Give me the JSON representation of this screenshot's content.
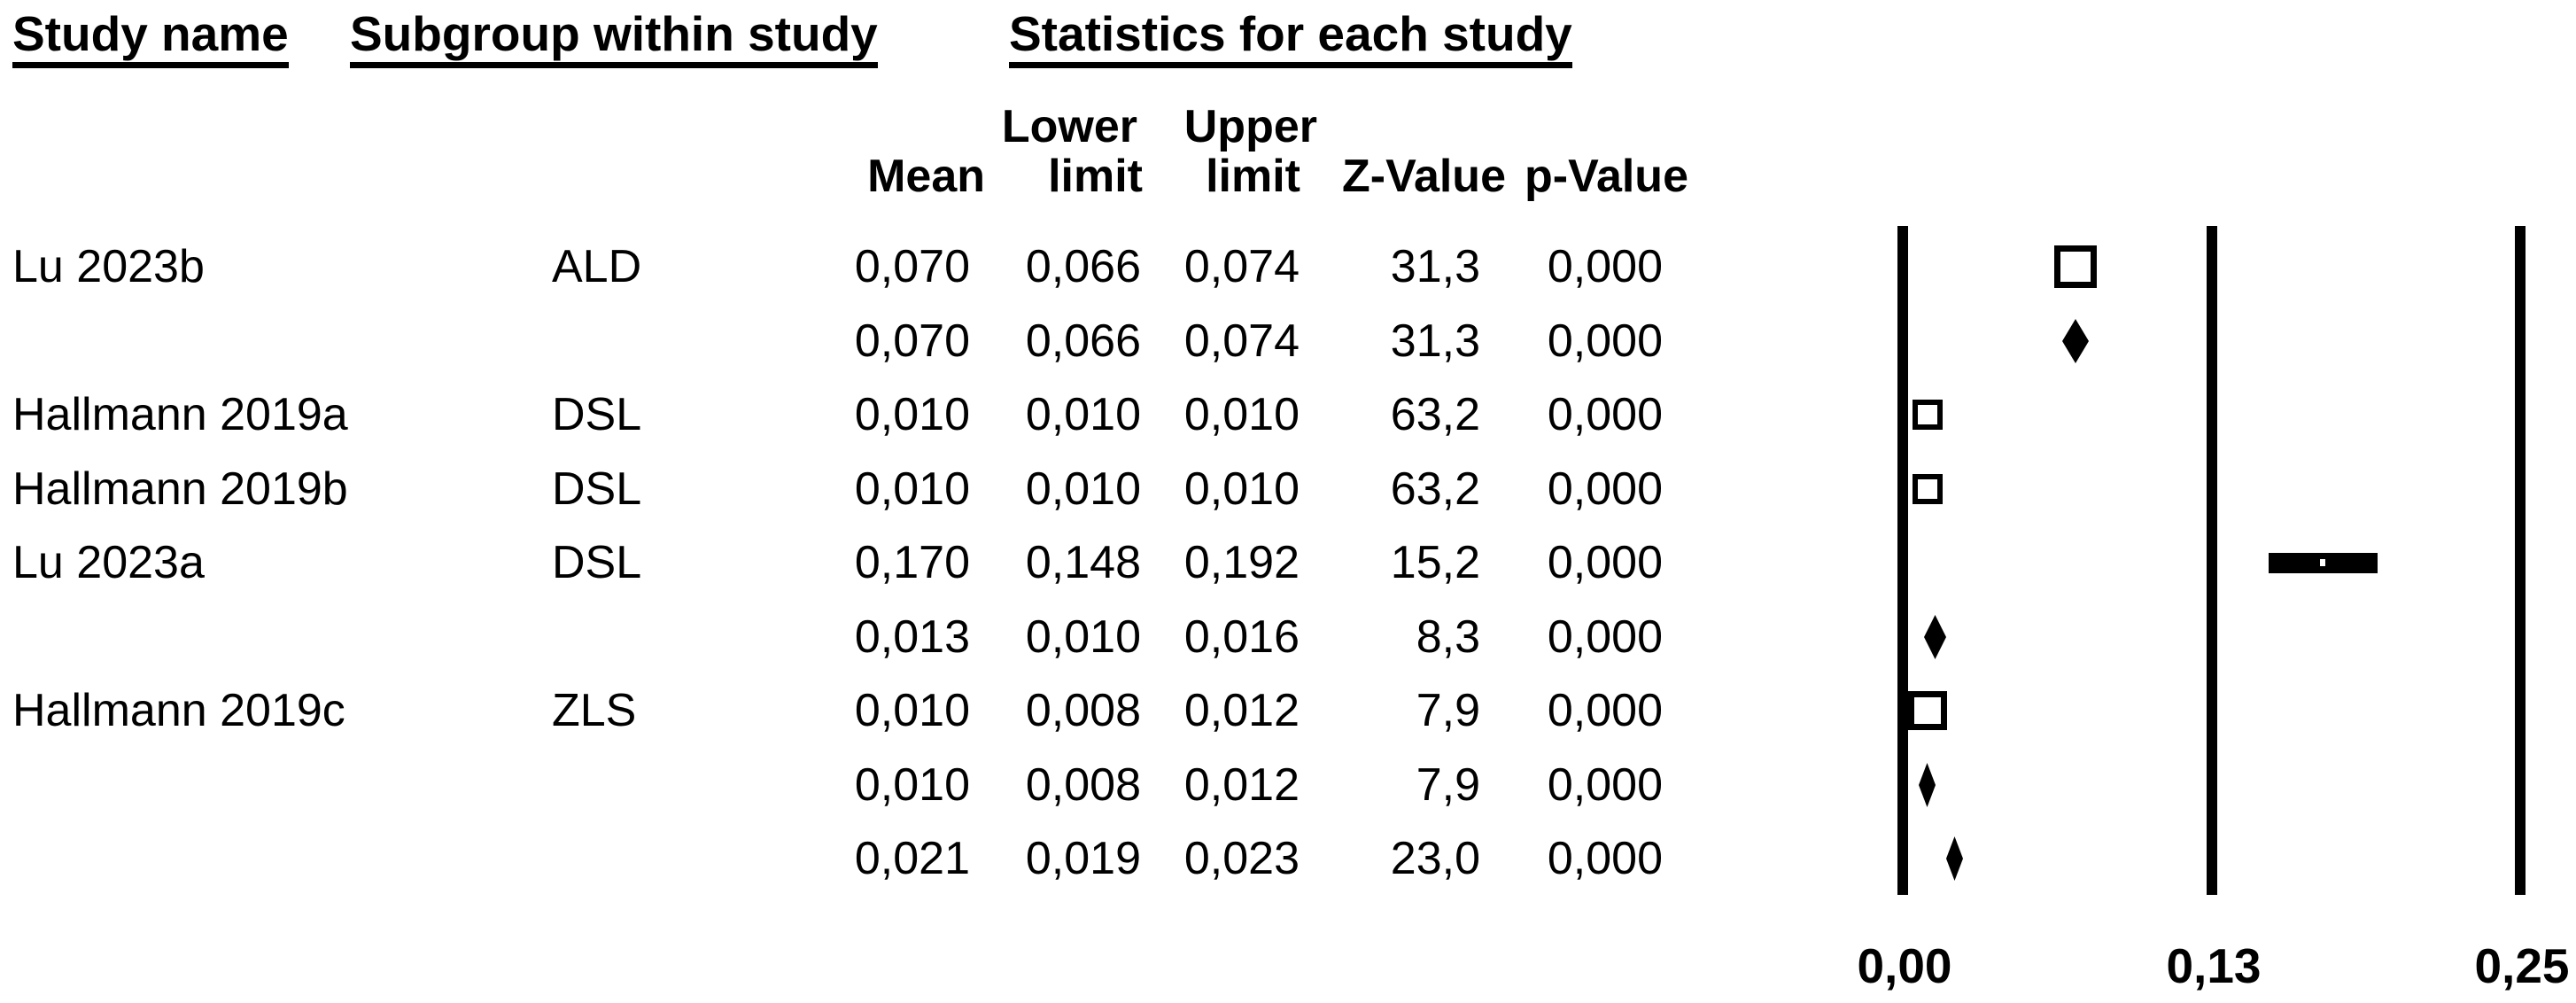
{
  "colors": {
    "foreground": "#000000",
    "background": "#ffffff"
  },
  "table_headers": {
    "study_name": "Study name",
    "subgroup": "Subgroup within study",
    "statistics": "Statistics for each study"
  },
  "column_headers": {
    "lower_top": "Lower",
    "upper_top": "Upper",
    "mean": "Mean",
    "lower_bottom": "limit",
    "upper_bottom": "limit",
    "z_value": "Z-Value",
    "p_value": "p-Value"
  },
  "chart_data": {
    "type": "forest",
    "title": "Statistics for each study",
    "xlabel": "",
    "axis": {
      "min": 0,
      "max": 0.25,
      "ticks": [
        {
          "label": "0,00",
          "value": 0
        },
        {
          "label": "0,13",
          "value": 0.125
        },
        {
          "label": "0,25",
          "value": 0.25
        }
      ],
      "gridlines": "vertical-at-ticks"
    },
    "rows": [
      {
        "study": "Lu 2023b",
        "subgroup": "ALD",
        "mean": "0,070",
        "lower": "0,066",
        "upper": "0,074",
        "z": "31,3",
        "p": "0,000",
        "mean_v": 0.07,
        "lower_v": 0.066,
        "upper_v": 0.074,
        "marker": "square",
        "size": 48,
        "border": 7
      },
      {
        "study": "",
        "subgroup": "",
        "mean": "0,070",
        "lower": "0,066",
        "upper": "0,074",
        "z": "31,3",
        "p": "0,000",
        "mean_v": 0.07,
        "lower_v": 0.066,
        "upper_v": 0.074,
        "marker": "diamond"
      },
      {
        "study": "Hallmann 2019a",
        "subgroup": "DSL",
        "mean": "0,010",
        "lower": "0,010",
        "upper": "0,010",
        "z": "63,2",
        "p": "0,000",
        "mean_v": 0.01,
        "lower_v": 0.01,
        "upper_v": 0.01,
        "marker": "square",
        "size": 34,
        "border": 6
      },
      {
        "study": "Hallmann 2019b",
        "subgroup": "DSL",
        "mean": "0,010",
        "lower": "0,010",
        "upper": "0,010",
        "z": "63,2",
        "p": "0,000",
        "mean_v": 0.01,
        "lower_v": 0.01,
        "upper_v": 0.01,
        "marker": "square",
        "size": 34,
        "border": 6
      },
      {
        "study": "Lu 2023a",
        "subgroup": "DSL",
        "mean": "0,170",
        "lower": "0,148",
        "upper": "0,192",
        "z": "15,2",
        "p": "0,000",
        "mean_v": 0.17,
        "lower_v": 0.148,
        "upper_v": 0.192,
        "marker": "bar",
        "size": 23
      },
      {
        "study": "",
        "subgroup": "",
        "mean": "0,013",
        "lower": "0,010",
        "upper": "0,016",
        "z": "8,3",
        "p": "0,000",
        "mean_v": 0.013,
        "lower_v": 0.01,
        "upper_v": 0.016,
        "marker": "diamond"
      },
      {
        "study": "Hallmann 2019c",
        "subgroup": "ZLS",
        "mean": "0,010",
        "lower": "0,008",
        "upper": "0,012",
        "z": "7,9",
        "p": "0,000",
        "mean_v": 0.01,
        "lower_v": 0.008,
        "upper_v": 0.012,
        "marker": "square",
        "size": 44,
        "border": 7
      },
      {
        "study": "",
        "subgroup": "",
        "mean": "0,010",
        "lower": "0,008",
        "upper": "0,012",
        "z": "7,9",
        "p": "0,000",
        "mean_v": 0.01,
        "lower_v": 0.008,
        "upper_v": 0.012,
        "marker": "diamond"
      },
      {
        "study": "",
        "subgroup": "",
        "mean": "0,021",
        "lower": "0,019",
        "upper": "0,023",
        "z": "23,0",
        "p": "0,000",
        "mean_v": 0.021,
        "lower_v": 0.019,
        "upper_v": 0.023,
        "marker": "diamond"
      }
    ]
  }
}
